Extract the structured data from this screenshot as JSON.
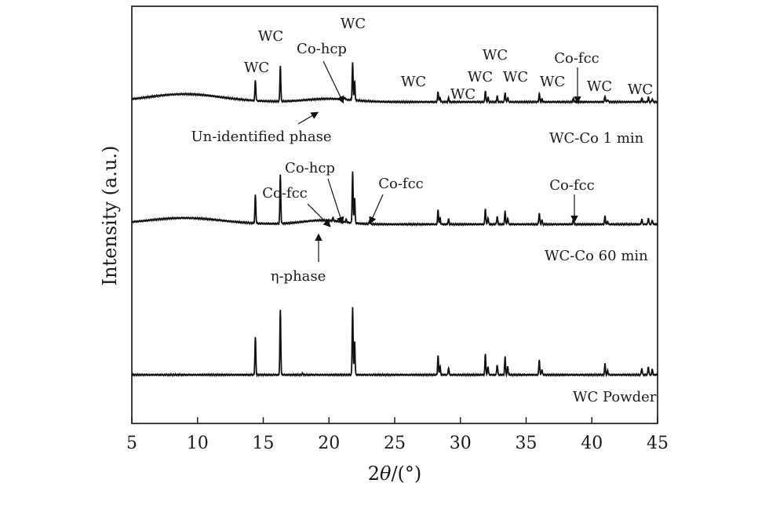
{
  "chart_data": {
    "type": "line",
    "title": "",
    "xlabel_prefix": "2",
    "xlabel_var": "θ",
    "xlabel_suffix": "/(°)",
    "ylabel": "Intensity (a.u.)",
    "xlim": [
      5,
      45
    ],
    "xticks": [
      "5",
      "10",
      "15",
      "20",
      "25",
      "30",
      "35",
      "40",
      "45"
    ],
    "grid": false,
    "peaks_common": [
      {
        "x": 14.4,
        "h": 0.55
      },
      {
        "x": 16.3,
        "h": 0.95
      },
      {
        "x": 21.8,
        "h": 1.0
      },
      {
        "x": 21.95,
        "h": 0.5
      },
      {
        "x": 28.3,
        "h": 0.28
      },
      {
        "x": 28.45,
        "h": 0.12
      },
      {
        "x": 29.1,
        "h": 0.1
      },
      {
        "x": 31.9,
        "h": 0.3
      },
      {
        "x": 32.1,
        "h": 0.12
      },
      {
        "x": 32.8,
        "h": 0.15
      },
      {
        "x": 33.4,
        "h": 0.26
      },
      {
        "x": 33.6,
        "h": 0.12
      },
      {
        "x": 36.0,
        "h": 0.22
      },
      {
        "x": 36.2,
        "h": 0.08
      },
      {
        "x": 41.0,
        "h": 0.16
      },
      {
        "x": 41.2,
        "h": 0.06
      },
      {
        "x": 43.8,
        "h": 0.1
      },
      {
        "x": 44.3,
        "h": 0.12
      },
      {
        "x": 44.6,
        "h": 0.08
      }
    ],
    "series": [
      {
        "name": "WC-Co 1 min",
        "scale": 0.32,
        "extra_peaks": [
          {
            "x": 21.2,
            "h": 0.06
          },
          {
            "x": 38.6,
            "h": 0.1
          }
        ]
      },
      {
        "name": "WC-Co 60 min",
        "scale": 0.44,
        "extra_peaks": [
          {
            "x": 20.3,
            "h": 0.06
          },
          {
            "x": 21.3,
            "h": 0.06
          },
          {
            "x": 23.1,
            "h": 0.08
          },
          {
            "x": 38.6,
            "h": 0.12
          }
        ]
      },
      {
        "name": "WC Powder",
        "scale": 0.58,
        "extra_peaks": [
          {
            "x": 18.0,
            "h": 0.02
          }
        ]
      }
    ],
    "annotations": [
      {
        "text": "WC",
        "peak_x": 14.4,
        "series": 0
      },
      {
        "text": "WC",
        "peak_x": 16.3,
        "series": 0
      },
      {
        "text": "Co-hcp",
        "peak_x": 21.2,
        "series": 0
      },
      {
        "text": "WC",
        "peak_x": 21.8,
        "series": 0
      },
      {
        "text": "WC",
        "peak_x": 28.3,
        "series": 0
      },
      {
        "text": "WC",
        "peak_x": 29.1,
        "series": 0
      },
      {
        "text": "WC",
        "peak_x": 31.9,
        "series": 0
      },
      {
        "text": "WC",
        "peak_x": 32.8,
        "series": 0
      },
      {
        "text": "WC",
        "peak_x": 33.4,
        "series": 0
      },
      {
        "text": "WC",
        "peak_x": 36.0,
        "series": 0
      },
      {
        "text": "Co-fcc",
        "peak_x": 38.6,
        "series": 0
      },
      {
        "text": "WC",
        "peak_x": 41.0,
        "series": 0
      },
      {
        "text": "WC",
        "peak_x": 44.3,
        "series": 0
      },
      {
        "text": "Un-identified phase",
        "peak_x": 19.5,
        "series": 0
      },
      {
        "text": "Co-hcp",
        "peak_x": 21.3,
        "series": 1
      },
      {
        "text": "Co-fcc",
        "peak_x": 20.3,
        "series": 1
      },
      {
        "text": "Co-fcc",
        "peak_x": 23.1,
        "series": 1
      },
      {
        "text": "Co-fcc",
        "peak_x": 38.6,
        "series": 1
      },
      {
        "text": "η-phase",
        "peak_x": 19.9,
        "series": 1
      }
    ]
  }
}
